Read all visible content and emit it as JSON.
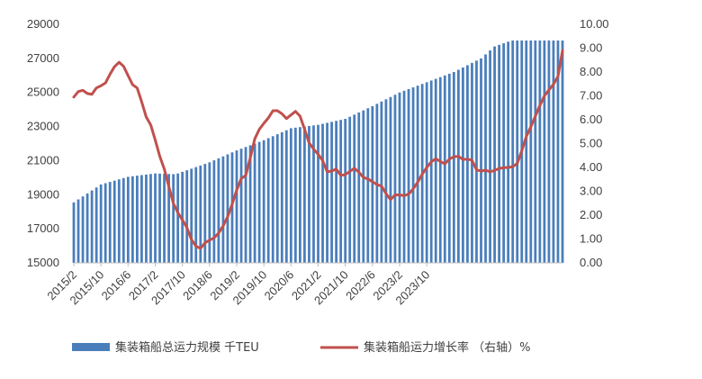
{
  "chart_data": {
    "type": "bar+line",
    "title": "",
    "x_tick_labels": [
      "2015/2",
      "2015/10",
      "2016/6",
      "2017/2",
      "2017/10",
      "2018/6",
      "2019/2",
      "2019/10",
      "2020/6",
      "2021/2",
      "2021/10",
      "2022/6",
      "2023/2",
      "2023/10"
    ],
    "y_left": {
      "min": 15000,
      "max": 29000,
      "ticks": [
        15000,
        17000,
        19000,
        21000,
        23000,
        25000,
        27000,
        29000
      ]
    },
    "y_right": {
      "min": 0,
      "max": 10,
      "ticks": [
        "0.00",
        "1.00",
        "2.00",
        "3.00",
        "4.00",
        "5.00",
        "6.00",
        "7.00",
        "8.00",
        "9.00",
        "10.00"
      ]
    },
    "months": 109,
    "bar_anchors": [
      [
        0,
        18550
      ],
      [
        8,
        19600
      ],
      [
        16,
        20050
      ],
      [
        24,
        20250
      ],
      [
        30,
        20200
      ],
      [
        40,
        20900
      ],
      [
        48,
        21600
      ],
      [
        56,
        22200
      ],
      [
        64,
        22900
      ],
      [
        72,
        23100
      ],
      [
        80,
        23450
      ],
      [
        88,
        24200
      ],
      [
        96,
        25000
      ],
      [
        104,
        25600
      ],
      [
        112,
        26200
      ],
      [
        120,
        27000
      ],
      [
        124,
        27700
      ],
      [
        129,
        28050
      ]
    ],
    "line_anchors": [
      [
        0,
        6.95
      ],
      [
        2,
        7.3
      ],
      [
        5,
        7.0
      ],
      [
        7,
        7.4
      ],
      [
        9,
        7.45
      ],
      [
        11,
        8.0
      ],
      [
        13,
        8.45
      ],
      [
        15,
        8.2
      ],
      [
        17,
        7.5
      ],
      [
        19,
        7.3
      ],
      [
        21,
        6.2
      ],
      [
        23,
        5.7
      ],
      [
        25,
        4.6
      ],
      [
        27,
        3.8
      ],
      [
        29,
        2.6
      ],
      [
        31,
        2.0
      ],
      [
        33,
        1.6
      ],
      [
        35,
        0.85
      ],
      [
        37,
        0.55
      ],
      [
        39,
        0.9
      ],
      [
        41,
        1.0
      ],
      [
        43,
        1.3
      ],
      [
        45,
        1.8
      ],
      [
        47,
        2.6
      ],
      [
        49,
        3.5
      ],
      [
        51,
        3.7
      ],
      [
        53,
        5.1
      ],
      [
        55,
        5.7
      ],
      [
        57,
        6.0
      ],
      [
        59,
        6.45
      ],
      [
        61,
        6.3
      ],
      [
        63,
        6.0
      ],
      [
        65,
        6.4
      ],
      [
        67,
        6.1
      ],
      [
        69,
        5.1
      ],
      [
        71,
        4.7
      ],
      [
        73,
        4.4
      ],
      [
        75,
        3.7
      ],
      [
        77,
        4.0
      ],
      [
        79,
        3.6
      ],
      [
        81,
        3.8
      ],
      [
        83,
        4.0
      ],
      [
        85,
        3.6
      ],
      [
        87,
        3.5
      ],
      [
        89,
        3.3
      ],
      [
        91,
        3.2
      ],
      [
        93,
        2.6
      ],
      [
        95,
        2.9
      ],
      [
        97,
        2.8
      ],
      [
        99,
        2.9
      ],
      [
        101,
        3.3
      ],
      [
        103,
        3.8
      ],
      [
        105,
        4.2
      ],
      [
        107,
        4.4
      ],
      [
        109,
        4.1
      ],
      [
        111,
        4.4
      ],
      [
        113,
        4.5
      ],
      [
        115,
        4.3
      ],
      [
        117,
        4.4
      ],
      [
        119,
        3.8
      ],
      [
        121,
        3.9
      ],
      [
        123,
        3.8
      ],
      [
        125,
        3.95
      ],
      [
        127,
        4.0
      ],
      [
        129,
        4.0
      ],
      [
        131,
        4.2
      ],
      [
        133,
        5.2
      ],
      [
        135,
        5.8
      ],
      [
        137,
        6.5
      ],
      [
        139,
        7.1
      ],
      [
        141,
        7.4
      ],
      [
        143,
        7.9
      ],
      [
        144,
        8.9
      ]
    ],
    "series": [
      {
        "name": "集装箱船总运力规模  千TEU",
        "axis": "left",
        "kind": "bar",
        "color": "#4a7ebb"
      },
      {
        "name": "集装箱船运力增长率  （右轴）%",
        "axis": "right",
        "kind": "line",
        "color": "#c0504d"
      }
    ],
    "grid": false,
    "legend_position": "bottom"
  }
}
